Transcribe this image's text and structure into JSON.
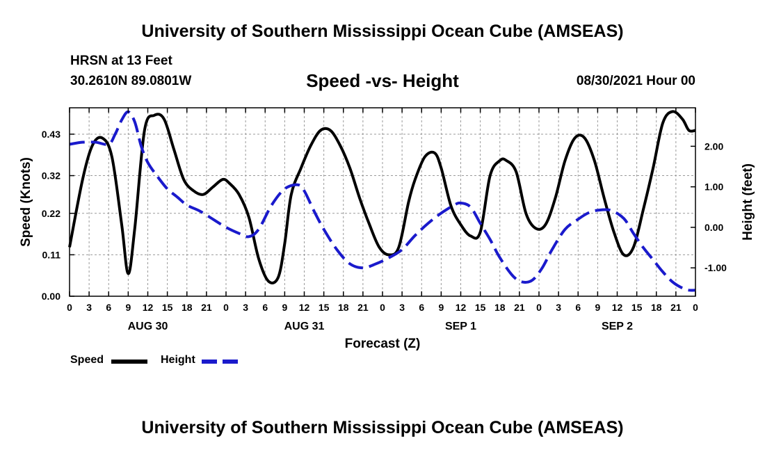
{
  "header": {
    "title": "University of Southern Mississippi Ocean Cube (AMSEAS)",
    "station": "HRSN at 13 Feet",
    "coordinates": "30.2610N  89.0801W",
    "chart_title": "Speed -vs- Height",
    "date": "08/30/2021 Hour 00"
  },
  "footer": {
    "title": "University of Southern Mississippi Ocean Cube (AMSEAS)"
  },
  "legend": {
    "speed_label": "Speed",
    "height_label": "Height"
  },
  "colors": {
    "speed": "#000000",
    "height": "#1a1acc",
    "grid": "#999999"
  },
  "chart_data": {
    "type": "line",
    "title": "Speed -vs- Height",
    "xlabel": "Forecast (Z)",
    "ylabel": "Speed (Knots)",
    "y2label": "Height (feet)",
    "xlim": [
      0,
      96
    ],
    "ylim": [
      0,
      0.5
    ],
    "y2lim": [
      -1.7,
      2.95
    ],
    "y_ticks": [
      0.0,
      0.11,
      0.22,
      0.32,
      0.43
    ],
    "y_tick_labels": [
      "0.00",
      "0.11",
      "0.22",
      "0.32",
      "0.43"
    ],
    "y2_ticks": [
      -1.0,
      0.0,
      1.0,
      2.0
    ],
    "y2_tick_labels": [
      "-1.00",
      "0.00",
      "1.00",
      "2.00"
    ],
    "x_tick_labels": [
      "0",
      "3",
      "6",
      "9",
      "12",
      "15",
      "18",
      "21",
      "0",
      "3",
      "6",
      "9",
      "12",
      "15",
      "18",
      "21",
      "0",
      "3",
      "6",
      "9",
      "12",
      "15",
      "18",
      "21",
      "0",
      "3",
      "6",
      "9",
      "12",
      "15",
      "18",
      "21",
      "0"
    ],
    "day_labels": [
      {
        "hour": 12,
        "label": "AUG 30"
      },
      {
        "hour": 36,
        "label": "AUG 31"
      },
      {
        "hour": 60,
        "label": "SEP 1"
      },
      {
        "hour": 84,
        "label": "SEP 2"
      }
    ],
    "grid": true,
    "series": [
      {
        "name": "Speed",
        "axis": "left",
        "style": "solid",
        "x": [
          0,
          2,
          3.5,
          5,
          6.5,
          8,
          9,
          10,
          11.5,
          13,
          14.5,
          16,
          17.5,
          19,
          20.5,
          22,
          23.5,
          24.5,
          26,
          27.5,
          29,
          30.5,
          32,
          33,
          34,
          35.5,
          37,
          38.5,
          40,
          41.5,
          43,
          44.5,
          46,
          47.5,
          49,
          50.5,
          52,
          53,
          54.5,
          56,
          57,
          58.5,
          60,
          61.5,
          63,
          64.5,
          66,
          67,
          68.5,
          70,
          71.5,
          73,
          74.5,
          76,
          77.5,
          79,
          80.5,
          82,
          83.5,
          85,
          86.5,
          88,
          89.5,
          91,
          92.5,
          94,
          95,
          96
        ],
        "values": [
          0.13,
          0.31,
          0.4,
          0.42,
          0.37,
          0.19,
          0.06,
          0.18,
          0.44,
          0.48,
          0.47,
          0.39,
          0.31,
          0.28,
          0.27,
          0.29,
          0.31,
          0.3,
          0.27,
          0.21,
          0.1,
          0.04,
          0.05,
          0.14,
          0.27,
          0.34,
          0.4,
          0.44,
          0.44,
          0.4,
          0.34,
          0.26,
          0.19,
          0.13,
          0.11,
          0.13,
          0.25,
          0.31,
          0.37,
          0.38,
          0.34,
          0.24,
          0.19,
          0.16,
          0.17,
          0.32,
          0.36,
          0.36,
          0.33,
          0.22,
          0.18,
          0.19,
          0.26,
          0.36,
          0.42,
          0.42,
          0.36,
          0.26,
          0.17,
          0.11,
          0.13,
          0.23,
          0.34,
          0.46,
          0.49,
          0.47,
          0.44,
          0.44
        ]
      },
      {
        "name": "Height",
        "axis": "right",
        "style": "dashed",
        "x": [
          0,
          2,
          4,
          6,
          7,
          8,
          9,
          10,
          11,
          12,
          13.5,
          15,
          16.5,
          18,
          20,
          22,
          24,
          26,
          27.5,
          29,
          31,
          33,
          35,
          36,
          37.5,
          39,
          41,
          43,
          45,
          47,
          49,
          51,
          53,
          55,
          57,
          59,
          60,
          61.5,
          63,
          64.5,
          66,
          68,
          69.5,
          71,
          72.5,
          74,
          76,
          78,
          79.5,
          81,
          83,
          85,
          86.5,
          88,
          89.5,
          91,
          92.5,
          94,
          95,
          96
        ],
        "values": [
          2.05,
          2.1,
          2.1,
          2.05,
          2.3,
          2.65,
          2.85,
          2.6,
          2.0,
          1.6,
          1.25,
          0.95,
          0.75,
          0.55,
          0.4,
          0.2,
          0.0,
          -0.15,
          -0.23,
          -0.05,
          0.55,
          0.95,
          1.05,
          0.9,
          0.4,
          -0.05,
          -0.55,
          -0.9,
          -1.0,
          -0.9,
          -0.75,
          -0.55,
          -0.2,
          0.1,
          0.35,
          0.55,
          0.6,
          0.5,
          0.1,
          -0.3,
          -0.75,
          -1.2,
          -1.35,
          -1.3,
          -1.0,
          -0.55,
          -0.05,
          0.2,
          0.35,
          0.42,
          0.42,
          0.22,
          -0.15,
          -0.5,
          -0.8,
          -1.1,
          -1.35,
          -1.5,
          -1.55,
          -1.55
        ]
      }
    ]
  }
}
